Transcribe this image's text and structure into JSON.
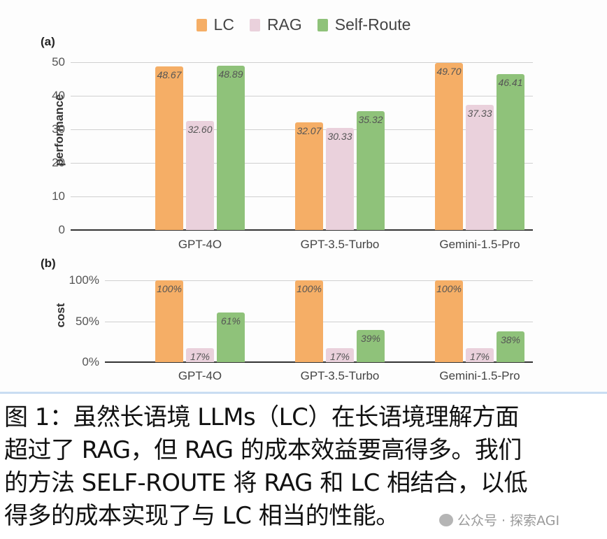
{
  "legend": [
    {
      "label": "LC",
      "color": "#f5ae66"
    },
    {
      "label": "RAG",
      "color": "#ead1dc"
    },
    {
      "label": "Self-Route",
      "color": "#8fc27a"
    }
  ],
  "chart_data": [
    {
      "panel": "(a)",
      "type": "bar",
      "title": "",
      "xlabel": "",
      "ylabel": "performance",
      "ylim": [
        0,
        50
      ],
      "yticks": [
        "0",
        "10",
        "20",
        "30",
        "40",
        "50"
      ],
      "grid": true,
      "legend_position": "top",
      "categories": [
        "GPT-4O",
        "GPT-3.5-Turbo",
        "Gemini-1.5-Pro"
      ],
      "series": [
        {
          "name": "LC",
          "values": [
            48.67,
            32.07,
            49.7
          ],
          "labels": [
            "48.67",
            "32.07",
            "49.70"
          ]
        },
        {
          "name": "RAG",
          "values": [
            32.6,
            30.33,
            37.33
          ],
          "labels": [
            "32.60",
            "30.33",
            "37.33"
          ]
        },
        {
          "name": "Self-Route",
          "values": [
            48.89,
            35.32,
            46.41
          ],
          "labels": [
            "48.89",
            "35.32",
            "46.41"
          ]
        }
      ]
    },
    {
      "panel": "(b)",
      "type": "bar",
      "title": "",
      "xlabel": "",
      "ylabel": "cost",
      "ylim": [
        0,
        100
      ],
      "yticks": [
        "0%",
        "50%",
        "100%"
      ],
      "grid": true,
      "categories": [
        "GPT-4O",
        "GPT-3.5-Turbo",
        "Gemini-1.5-Pro"
      ],
      "series": [
        {
          "name": "LC",
          "values": [
            100,
            100,
            100
          ],
          "labels": [
            "100%",
            "100%",
            "100%"
          ]
        },
        {
          "name": "RAG",
          "values": [
            17,
            17,
            17
          ],
          "labels": [
            "17%",
            "17%",
            "17%"
          ]
        },
        {
          "name": "Self-Route",
          "values": [
            61,
            39,
            38
          ],
          "labels": [
            "61%",
            "39%",
            "38%"
          ]
        }
      ]
    }
  ],
  "caption": {
    "lines": [
      "图 1：虽然长语境 LLMs（LC）在长语境理解方面",
      "超过了 RAG，但 RAG 的成本效益要高得多。我们",
      "的方法 SELF-ROUTE 将 RAG 和 LC 相结合，以低",
      "得多的成本实现了与 LC 相当的性能。"
    ]
  },
  "watermark": {
    "text": "公众号 · 探索AGI"
  }
}
